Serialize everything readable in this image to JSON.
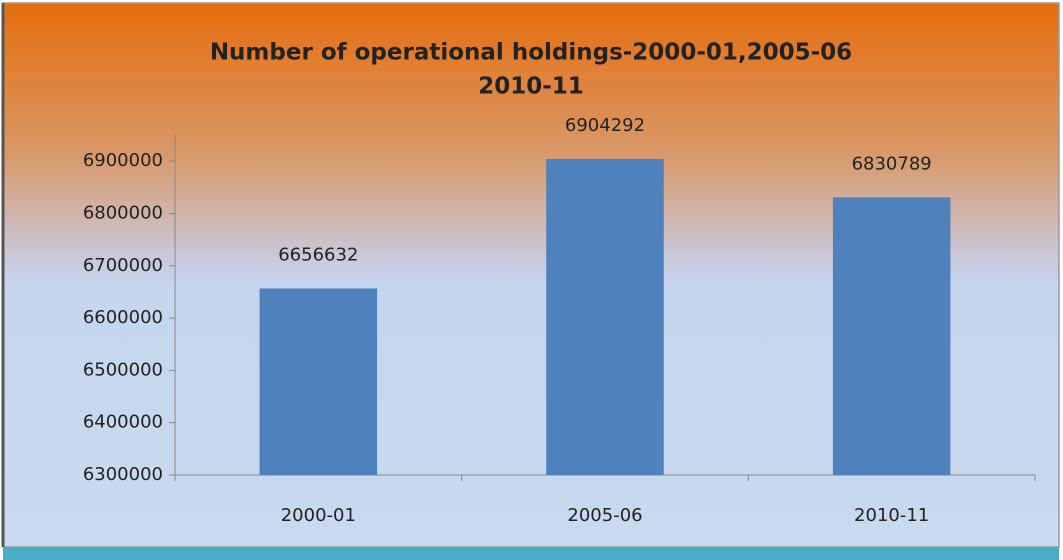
{
  "chart_data": {
    "type": "bar",
    "title": [
      "Number of operational holdings-2000-01,2005-06",
      "2010-11"
    ],
    "categories": [
      "2000-01",
      "2005-06",
      "2010-11"
    ],
    "values": [
      6656632,
      6904292,
      6830789
    ],
    "color": "#4f81bd",
    "ylim": [
      6300000,
      6950000
    ],
    "yticks": [
      6300000,
      6400000,
      6500000,
      6600000,
      6700000,
      6800000,
      6900000
    ],
    "grid": false
  }
}
